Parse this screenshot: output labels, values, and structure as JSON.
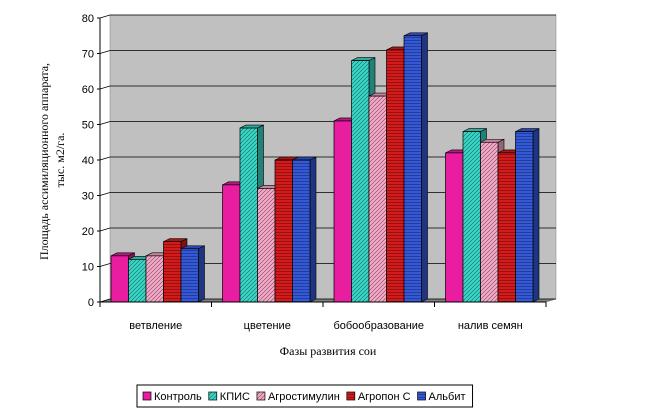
{
  "chart_data": {
    "type": "bar",
    "categories": [
      "ветвление",
      "цветение",
      "бобообразование",
      "налив семян"
    ],
    "series": [
      {
        "name": "Контроль",
        "values": [
          13,
          33,
          51,
          42
        ],
        "color": "#e81da0",
        "hatch": "none"
      },
      {
        "name": "КПИС",
        "values": [
          12,
          49,
          68,
          48
        ],
        "color": "#38d8c8",
        "hatch": "diagonal"
      },
      {
        "name": "Агростимулин",
        "values": [
          13,
          32,
          58,
          45
        ],
        "color": "#f7a8c8",
        "hatch": "diagonal"
      },
      {
        "name": "Агропон С",
        "values": [
          17,
          40,
          71,
          42
        ],
        "color": "#d41a1a",
        "hatch": "horizontal"
      },
      {
        "name": "Альбит",
        "values": [
          15,
          40,
          75,
          48
        ],
        "color": "#3358d8",
        "hatch": "horizontal"
      }
    ],
    "title": "",
    "xlabel": "Фазы развития сои",
    "ylabel_lines": [
      "Площадь ассимиляционного  аппарата,",
      "тыс. м2/га."
    ],
    "ylim": [
      0,
      80
    ],
    "yticks": [
      0,
      10,
      20,
      30,
      40,
      50,
      60,
      70,
      80
    ],
    "grid": true,
    "legend_position": "bottom",
    "plot_background": "#c0c0c0"
  }
}
